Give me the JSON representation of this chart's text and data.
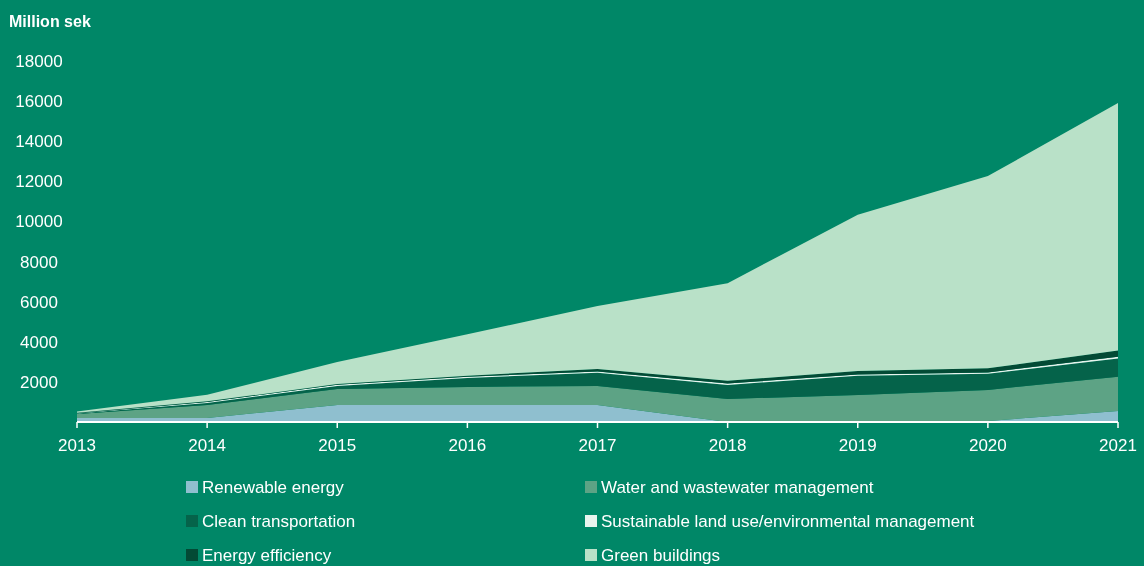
{
  "chart_data": {
    "type": "area",
    "stacked": true,
    "ylabel": "Million sek",
    "x": [
      2013,
      2014,
      2015,
      2016,
      2017,
      2018,
      2019,
      2020,
      2021
    ],
    "xlim": [
      2013,
      2021
    ],
    "xticks": [
      2013,
      2014,
      2015,
      2016,
      2017,
      2018,
      2019,
      2020,
      2021
    ],
    "ylim": [
      0,
      18000
    ],
    "yticks": [
      2000,
      4000,
      6000,
      8000,
      10000,
      12000,
      14000,
      16000,
      18000
    ],
    "grid": false,
    "legend": "bottom",
    "series": [
      {
        "name": "Renewable energy",
        "color": "#8fbfcf",
        "values": [
          200,
          200,
          850,
          850,
          850,
          0,
          0,
          50,
          550
        ]
      },
      {
        "name": "Water and wastewater management",
        "color": "#5da385",
        "values": [
          200,
          650,
          800,
          900,
          950,
          1150,
          1350,
          1550,
          1710
        ]
      },
      {
        "name": "Clean transportation",
        "color": "#05634a",
        "values": [
          20,
          100,
          150,
          450,
          650,
          700,
          950,
          800,
          910
        ]
      },
      {
        "name": "Sustainable land use/environmental management",
        "color": "#e8f4ee",
        "values": [
          20,
          50,
          60,
          60,
          70,
          70,
          70,
          70,
          80
        ]
      },
      {
        "name": "Energy efficiency",
        "color": "#034a35",
        "values": [
          20,
          30,
          30,
          50,
          120,
          140,
          170,
          210,
          310
        ]
      },
      {
        "name": "Green buildings",
        "color": "#b9e1c8",
        "values": [
          60,
          330,
          1100,
          2070,
          3140,
          4860,
          7800,
          9580,
          12340
        ]
      }
    ]
  }
}
